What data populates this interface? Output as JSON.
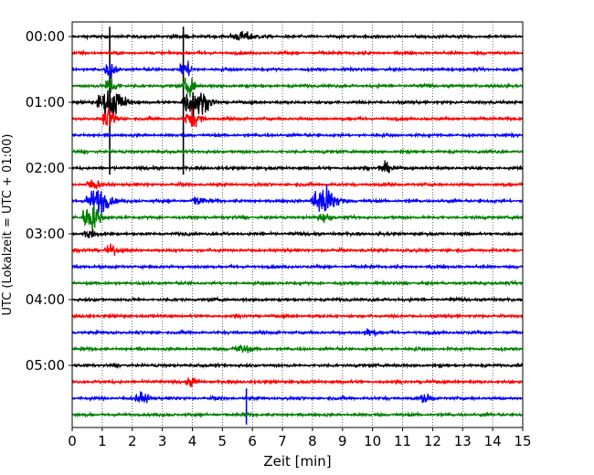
{
  "chart_data": {
    "type": "line",
    "title": "",
    "xlabel": "Zeit  [min]",
    "ylabel": "UTC (Lokalzeit = UTC + 01:00)",
    "xlim": [
      0,
      15
    ],
    "x_ticks": [
      "0",
      "1",
      "2",
      "3",
      "4",
      "5",
      "6",
      "7",
      "8",
      "9",
      "10",
      "11",
      "12",
      "13",
      "14",
      "15"
    ],
    "y_ticks": [
      "00:00",
      "01:00",
      "02:00",
      "03:00",
      "04:00",
      "05:00"
    ],
    "grid": "vertical dotted lines at each minute",
    "legend": "none",
    "trace_interval_min": 15,
    "trace_colors": [
      "#000000",
      "#ff0000",
      "#0000ff",
      "#008000"
    ],
    "traces": [
      {
        "start": "00:00",
        "color": "#000000"
      },
      {
        "start": "00:15",
        "color": "#ff0000"
      },
      {
        "start": "00:30",
        "color": "#0000ff"
      },
      {
        "start": "00:45",
        "color": "#008000"
      },
      {
        "start": "01:00",
        "color": "#000000"
      },
      {
        "start": "01:15",
        "color": "#ff0000"
      },
      {
        "start": "01:30",
        "color": "#0000ff"
      },
      {
        "start": "01:45",
        "color": "#008000"
      },
      {
        "start": "02:00",
        "color": "#000000"
      },
      {
        "start": "02:15",
        "color": "#ff0000"
      },
      {
        "start": "02:30",
        "color": "#0000ff"
      },
      {
        "start": "02:45",
        "color": "#008000"
      },
      {
        "start": "03:00",
        "color": "#000000"
      },
      {
        "start": "03:15",
        "color": "#ff0000"
      },
      {
        "start": "03:30",
        "color": "#0000ff"
      },
      {
        "start": "03:45",
        "color": "#008000"
      },
      {
        "start": "04:00",
        "color": "#000000"
      },
      {
        "start": "04:15",
        "color": "#ff0000"
      },
      {
        "start": "04:30",
        "color": "#0000ff"
      },
      {
        "start": "04:45",
        "color": "#008000"
      },
      {
        "start": "05:00",
        "color": "#000000"
      },
      {
        "start": "05:15",
        "color": "#ff0000"
      },
      {
        "start": "05:30",
        "color": "#0000ff"
      },
      {
        "start": "05:45",
        "color": "#008000"
      }
    ],
    "events": [
      {
        "trace": 0,
        "minute": 5.5,
        "amp": 0.45,
        "dur": 0.8
      },
      {
        "trace": 0,
        "minute": 1.25,
        "amp": 2.0,
        "dur": 0.15,
        "spike": true
      },
      {
        "trace": 0,
        "minute": 3.7,
        "amp": 2.0,
        "dur": 0.15,
        "spike": true
      },
      {
        "trace": 2,
        "minute": 1.2,
        "amp": 0.8,
        "dur": 0.4
      },
      {
        "trace": 2,
        "minute": 3.7,
        "amp": 0.8,
        "dur": 0.4
      },
      {
        "trace": 3,
        "minute": 1.2,
        "amp": 0.9,
        "dur": 0.4
      },
      {
        "trace": 3,
        "minute": 3.8,
        "amp": 0.9,
        "dur": 0.4
      },
      {
        "trace": 4,
        "minute": 1.1,
        "amp": 1.5,
        "dur": 0.9
      },
      {
        "trace": 4,
        "minute": 3.9,
        "amp": 1.5,
        "dur": 0.9
      },
      {
        "trace": 5,
        "minute": 1.15,
        "amp": 0.9,
        "dur": 0.5
      },
      {
        "trace": 5,
        "minute": 3.9,
        "amp": 0.9,
        "dur": 0.5
      },
      {
        "trace": 8,
        "minute": 10.3,
        "amp": 0.5,
        "dur": 0.5
      },
      {
        "trace": 9,
        "minute": 0.6,
        "amp": 0.5,
        "dur": 0.5
      },
      {
        "trace": 10,
        "minute": 0.7,
        "amp": 1.3,
        "dur": 0.8
      },
      {
        "trace": 10,
        "minute": 8.2,
        "amp": 1.6,
        "dur": 0.9
      },
      {
        "trace": 10,
        "minute": 4.1,
        "amp": 0.5,
        "dur": 0.4
      },
      {
        "trace": 11,
        "minute": 0.5,
        "amp": 1.4,
        "dur": 0.6
      },
      {
        "trace": 11,
        "minute": 8.3,
        "amp": 0.4,
        "dur": 0.5
      },
      {
        "trace": 12,
        "minute": 0.5,
        "amp": 0.6,
        "dur": 0.4
      },
      {
        "trace": 13,
        "minute": 1.2,
        "amp": 0.5,
        "dur": 0.4
      },
      {
        "trace": 18,
        "minute": 9.8,
        "amp": 0.4,
        "dur": 0.4
      },
      {
        "trace": 19,
        "minute": 5.5,
        "amp": 0.4,
        "dur": 0.6
      },
      {
        "trace": 21,
        "minute": 3.9,
        "amp": 0.4,
        "dur": 0.4
      },
      {
        "trace": 22,
        "minute": 2.2,
        "amp": 0.5,
        "dur": 0.5
      },
      {
        "trace": 22,
        "minute": 5.8,
        "amp": 1.6,
        "dur": 0.1,
        "spike": true
      },
      {
        "trace": 22,
        "minute": 11.7,
        "amp": 0.4,
        "dur": 0.4
      }
    ]
  }
}
